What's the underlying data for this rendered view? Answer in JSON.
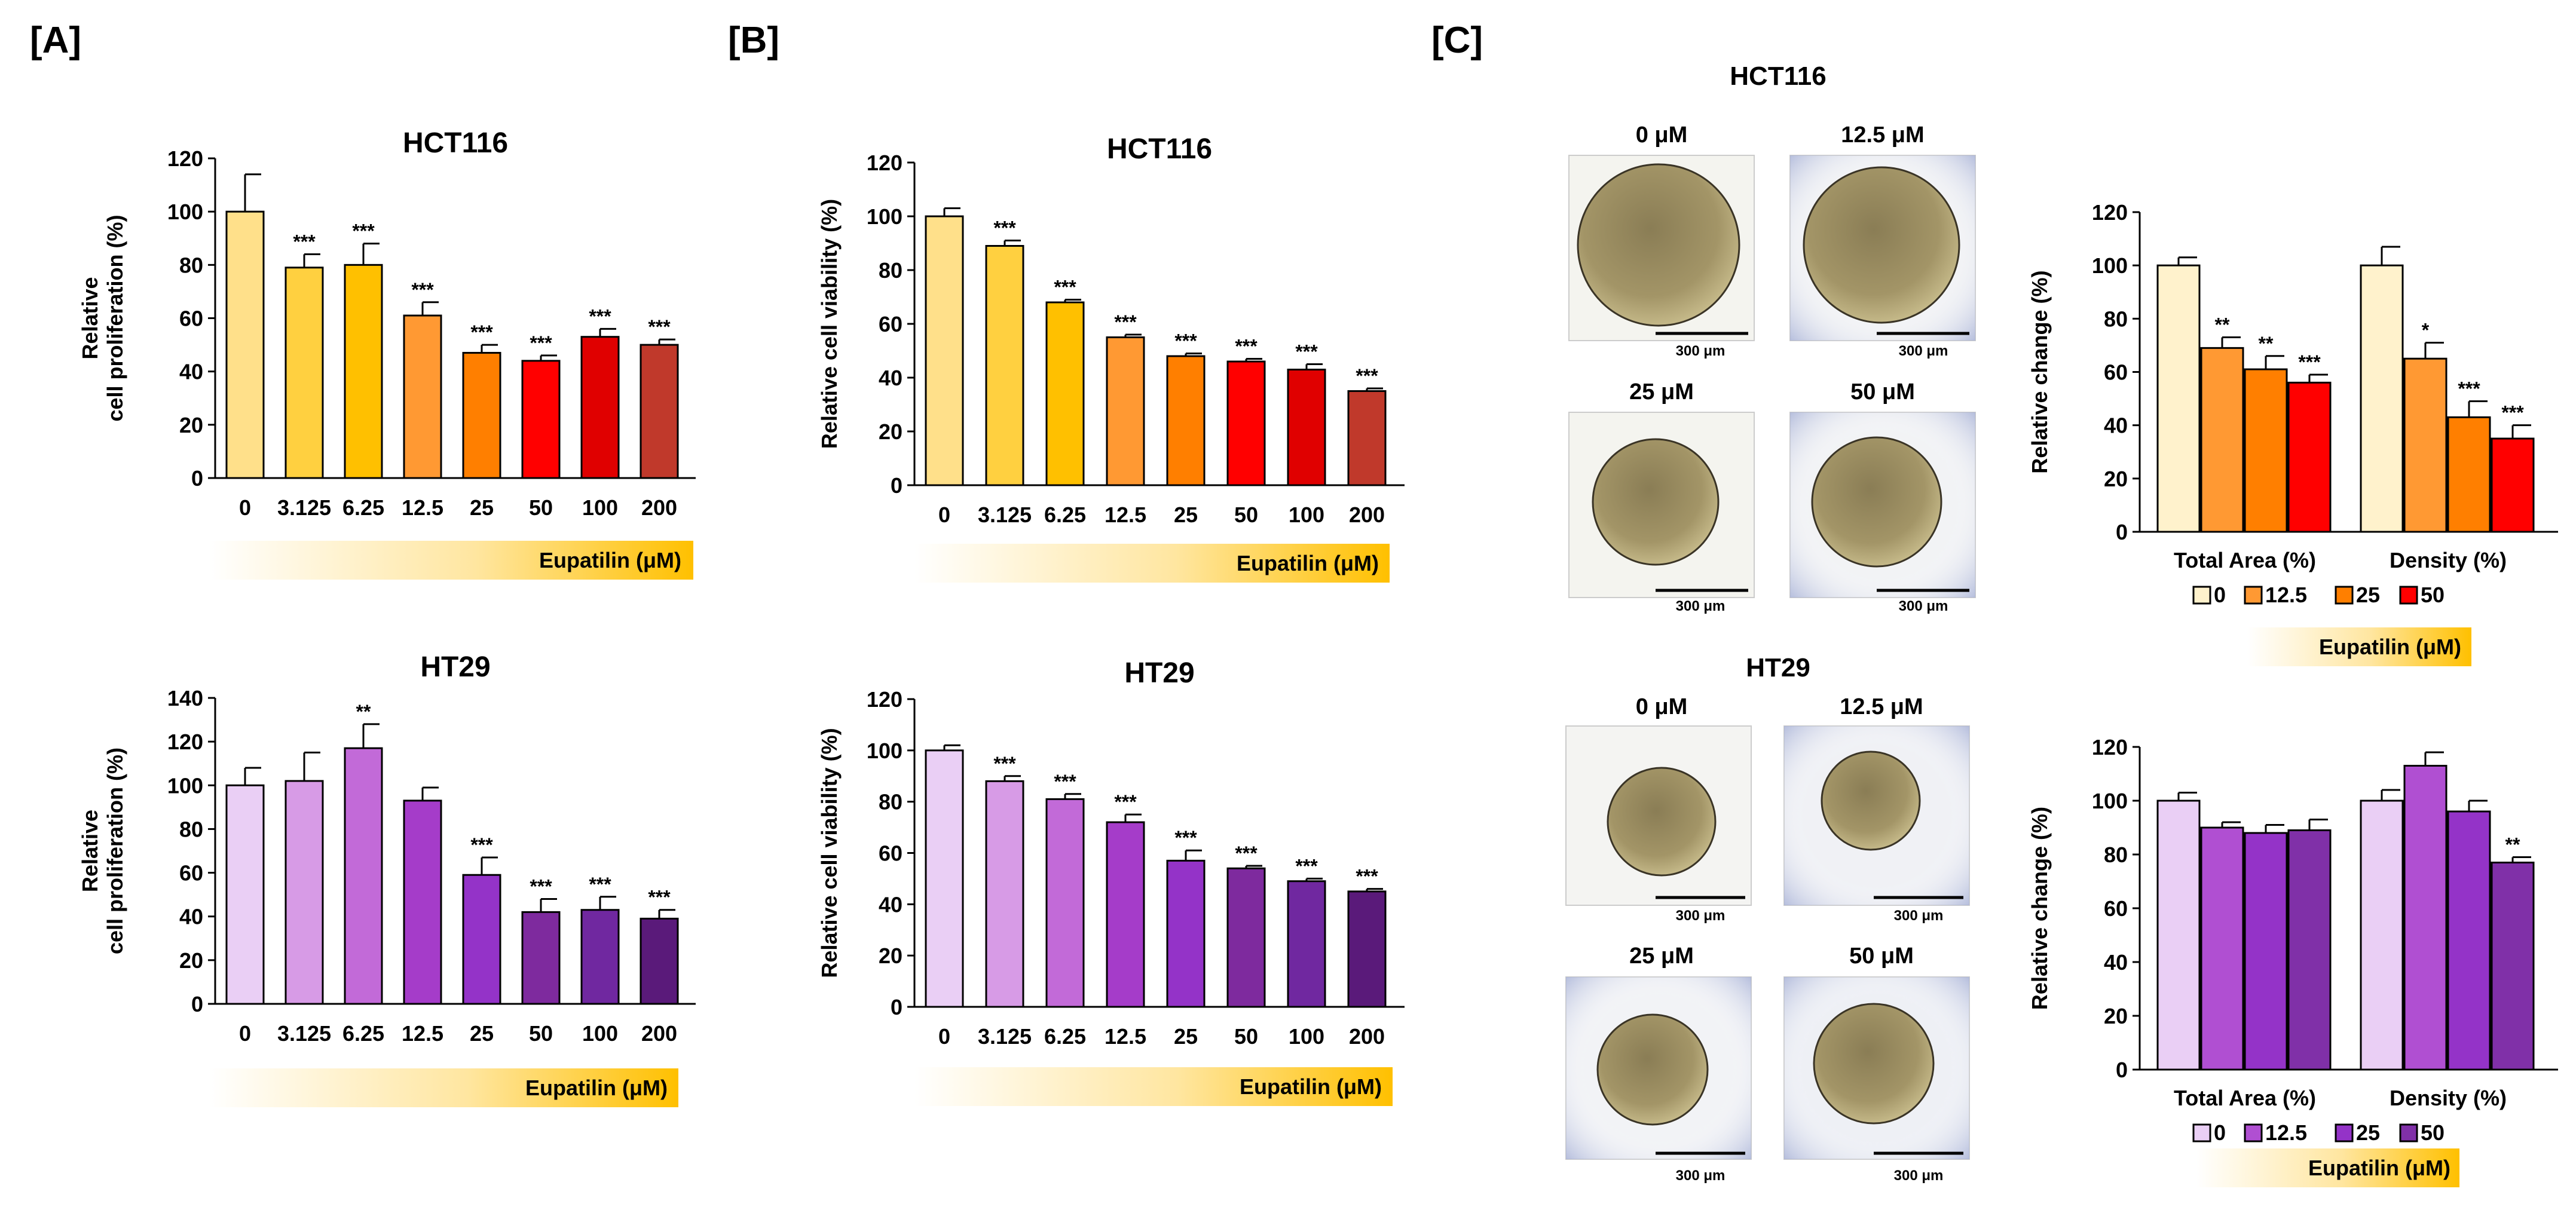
{
  "panels": {
    "a": {
      "label": "[A]"
    },
    "b": {
      "label": "[B]"
    },
    "c": {
      "label": "[C]"
    }
  },
  "colors": {
    "yellow_red": [
      "#ffe08a",
      "#ffd040",
      "#ffc000",
      "#ff9933",
      "#ff7f00",
      "#ff0000",
      "#e00000",
      "#c0392b"
    ],
    "purple": [
      "#eacff5",
      "#d79be6",
      "#c26ad8",
      "#a53cc9",
      "#9433c8",
      "#7e2a9e",
      "#7028a0",
      "#5a1a7a"
    ],
    "c_top": [
      "#fff2cc",
      "#ff9933",
      "#ff7f00",
      "#ff0000"
    ],
    "c_bottom": [
      "#eacff5",
      "#b04fd2",
      "#9433c8",
      "#8030a8"
    ],
    "gradient_start": "#ffffff",
    "gradient_end": "#ffc000"
  },
  "gradient_bars": {
    "a_top": {
      "label": "Eupatilin (μM)"
    },
    "a_bottom": {
      "label": "Eupatilin (μM)"
    },
    "b_top": {
      "label": "Eupatilin (μM)"
    },
    "b_bottom": {
      "label": "Eupatilin (μM)"
    },
    "c_top": {
      "label": "Eupatilin (μM)"
    },
    "c_bottom": {
      "label": "Eupatilin (μM)"
    }
  },
  "spheroids": {
    "top": {
      "title": "HCT116",
      "images": [
        {
          "label": "0 μM",
          "scale": "300 μm"
        },
        {
          "label": "12.5 μM",
          "scale": "300 μm"
        },
        {
          "label": "25 μM",
          "scale": "300 μm"
        },
        {
          "label": "50 μM",
          "scale": "300 μm"
        }
      ]
    },
    "bottom": {
      "title": "HT29",
      "images": [
        {
          "label": "0 μM",
          "scale": "300 μm"
        },
        {
          "label": "12.5 μM",
          "scale": "300 μm"
        },
        {
          "label": "25 μM",
          "scale": "300 μm"
        },
        {
          "label": "50 μM",
          "scale": "300 μm"
        }
      ]
    }
  },
  "chart_data": [
    {
      "id": "a-top",
      "type": "bar",
      "title": "HCT116",
      "ylabel_lines": [
        "Relative",
        "cell proliferation  (%)"
      ],
      "categories": [
        "0",
        "3.125",
        "6.25",
        "12.5",
        "25",
        "50",
        "100",
        "200"
      ],
      "values": [
        100,
        79,
        80,
        61,
        47,
        44,
        53,
        50
      ],
      "errors": [
        14,
        5,
        8,
        5,
        3,
        2,
        3,
        2
      ],
      "significance": [
        "",
        "***",
        "***",
        "***",
        "***",
        "***",
        "***",
        "***"
      ],
      "ylim": [
        0,
        120
      ],
      "ticks": [
        0,
        20,
        40,
        60,
        80,
        100,
        120
      ],
      "palette": "yellow_red",
      "xlabel": "Eupatilin (μM)"
    },
    {
      "id": "a-bottom",
      "type": "bar",
      "title": "HT29",
      "ylabel_lines": [
        "Relative",
        "cell proliferation  (%)"
      ],
      "categories": [
        "0",
        "3.125",
        "6.25",
        "12.5",
        "25",
        "50",
        "100",
        "200"
      ],
      "values": [
        100,
        102,
        117,
        93,
        59,
        42,
        43,
        39
      ],
      "errors": [
        8,
        13,
        11,
        6,
        8,
        6,
        6,
        4
      ],
      "significance": [
        "",
        "",
        "**",
        "",
        "***",
        "***",
        "***",
        "***"
      ],
      "ylim": [
        0,
        140
      ],
      "ticks": [
        0,
        20,
        40,
        60,
        80,
        100,
        120,
        140
      ],
      "palette": "purple",
      "xlabel": "Eupatilin (μM)"
    },
    {
      "id": "b-top",
      "type": "bar",
      "title": "HCT116",
      "ylabel_lines": [
        "Relative cell viability  (%)"
      ],
      "categories": [
        "0",
        "3.125",
        "6.25",
        "12.5",
        "25",
        "50",
        "100",
        "200"
      ],
      "values": [
        100,
        89,
        68,
        55,
        48,
        46,
        43,
        35
      ],
      "errors": [
        3,
        2,
        1,
        1,
        1,
        1,
        2,
        1
      ],
      "significance": [
        "",
        "***",
        "***",
        "***",
        "***",
        "***",
        "***",
        "***"
      ],
      "ylim": [
        0,
        120
      ],
      "ticks": [
        0,
        20,
        40,
        60,
        80,
        100,
        120
      ],
      "palette": "yellow_red",
      "xlabel": "Eupatilin (μM)"
    },
    {
      "id": "b-bottom",
      "type": "bar",
      "title": "HT29",
      "ylabel_lines": [
        "Relative cell viability  (%)"
      ],
      "categories": [
        "0",
        "3.125",
        "6.25",
        "12.5",
        "25",
        "50",
        "100",
        "200"
      ],
      "values": [
        100,
        88,
        81,
        72,
        57,
        54,
        49,
        45
      ],
      "errors": [
        2,
        2,
        2,
        3,
        4,
        1,
        1,
        1
      ],
      "significance": [
        "",
        "***",
        "***",
        "***",
        "***",
        "***",
        "***",
        "***"
      ],
      "ylim": [
        0,
        120
      ],
      "ticks": [
        0,
        20,
        40,
        60,
        80,
        100,
        120
      ],
      "palette": "purple",
      "xlabel": "Eupatilin (μM)"
    },
    {
      "id": "c-top",
      "type": "grouped-bar",
      "title": "",
      "ylabel_lines": [
        "Relative change  (%)"
      ],
      "groups": [
        "Total Area (%)",
        "Density (%)"
      ],
      "series": [
        {
          "name": "0",
          "values": [
            100,
            100
          ],
          "errors": [
            3,
            7
          ],
          "significance": [
            "",
            ""
          ]
        },
        {
          "name": "12.5",
          "values": [
            69,
            65
          ],
          "errors": [
            4,
            6
          ],
          "significance": [
            "**",
            "*"
          ]
        },
        {
          "name": "25",
          "values": [
            61,
            43
          ],
          "errors": [
            5,
            6
          ],
          "significance": [
            "**",
            "***"
          ]
        },
        {
          "name": "50",
          "values": [
            56,
            35
          ],
          "errors": [
            3,
            5
          ],
          "significance": [
            "***",
            "***"
          ]
        }
      ],
      "ylim": [
        0,
        120
      ],
      "ticks": [
        0,
        20,
        40,
        60,
        80,
        100,
        120
      ],
      "palette": "c_top",
      "xlabel": "Eupatilin (μM)"
    },
    {
      "id": "c-bottom",
      "type": "grouped-bar",
      "title": "",
      "ylabel_lines": [
        "Relative change  (%)"
      ],
      "groups": [
        "Total Area (%)",
        "Density (%)"
      ],
      "series": [
        {
          "name": "0",
          "values": [
            100,
            100
          ],
          "errors": [
            3,
            4
          ],
          "significance": [
            "",
            ""
          ]
        },
        {
          "name": "12.5",
          "values": [
            90,
            113
          ],
          "errors": [
            2,
            5
          ],
          "significance": [
            "",
            ""
          ]
        },
        {
          "name": "25",
          "values": [
            88,
            96
          ],
          "errors": [
            3,
            4
          ],
          "significance": [
            "",
            ""
          ]
        },
        {
          "name": "50",
          "values": [
            89,
            77
          ],
          "errors": [
            4,
            2
          ],
          "significance": [
            "",
            "**"
          ]
        }
      ],
      "ylim": [
        0,
        120
      ],
      "ticks": [
        0,
        20,
        40,
        60,
        80,
        100,
        120
      ],
      "palette": "c_bottom",
      "xlabel": "Eupatilin (μM)"
    }
  ]
}
